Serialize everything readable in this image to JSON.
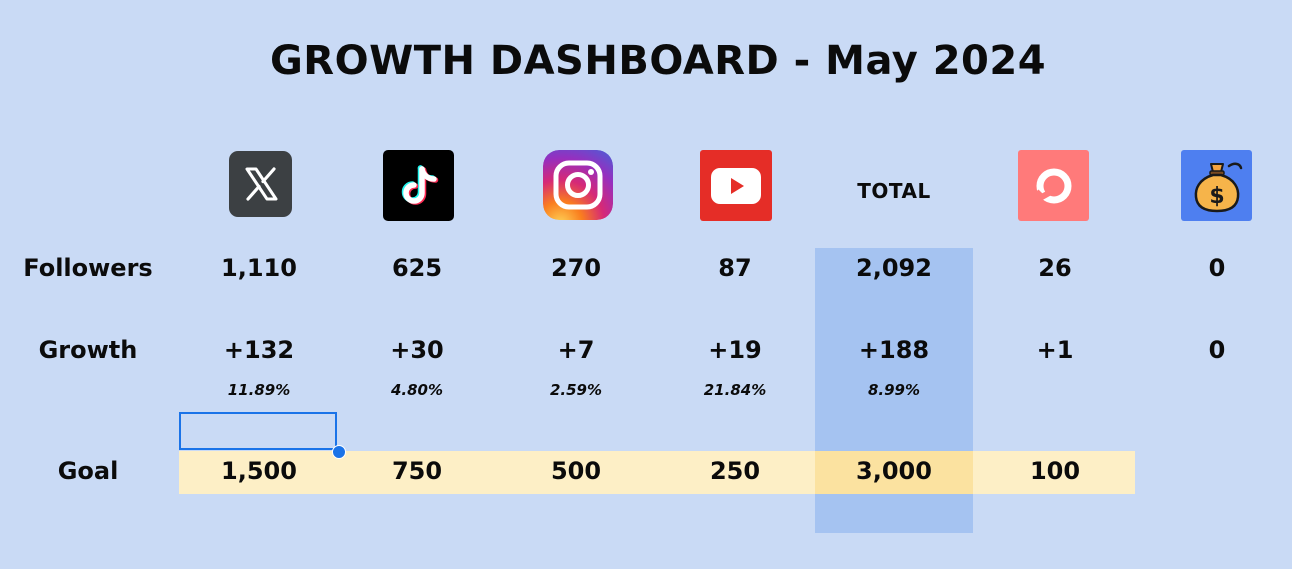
{
  "title": "GROWTH DASHBOARD - May 2024",
  "columns": [
    {
      "icon": "x-twitter-icon",
      "followers": "1,110",
      "growth": "+132",
      "growth_pct": "11.89%",
      "goal": "1,500"
    },
    {
      "icon": "tiktok-icon",
      "followers": "625",
      "growth": "+30",
      "growth_pct": "4.80%",
      "goal": "750"
    },
    {
      "icon": "instagram-icon",
      "followers": "270",
      "growth": "+7",
      "growth_pct": "2.59%",
      "goal": "500"
    },
    {
      "icon": "youtube-icon",
      "followers": "87",
      "growth": "+19",
      "growth_pct": "21.84%",
      "goal": "250"
    },
    {
      "header": "TOTAL",
      "followers": "2,092",
      "growth": "+188",
      "growth_pct": "8.99%",
      "goal": "3,000"
    },
    {
      "icon": "patreon-icon",
      "followers": "26",
      "growth": "+1",
      "goal": "100"
    },
    {
      "icon": "money-bag-icon",
      "followers": "0",
      "growth": "0"
    }
  ],
  "row_labels": {
    "followers": "Followers",
    "growth": "Growth",
    "goal": "Goal"
  },
  "colors": {
    "background": "#c9daf5",
    "total_highlight": "#a5c3f1",
    "goal_highlight": "#fdefc6",
    "selection": "#1a73e8"
  }
}
